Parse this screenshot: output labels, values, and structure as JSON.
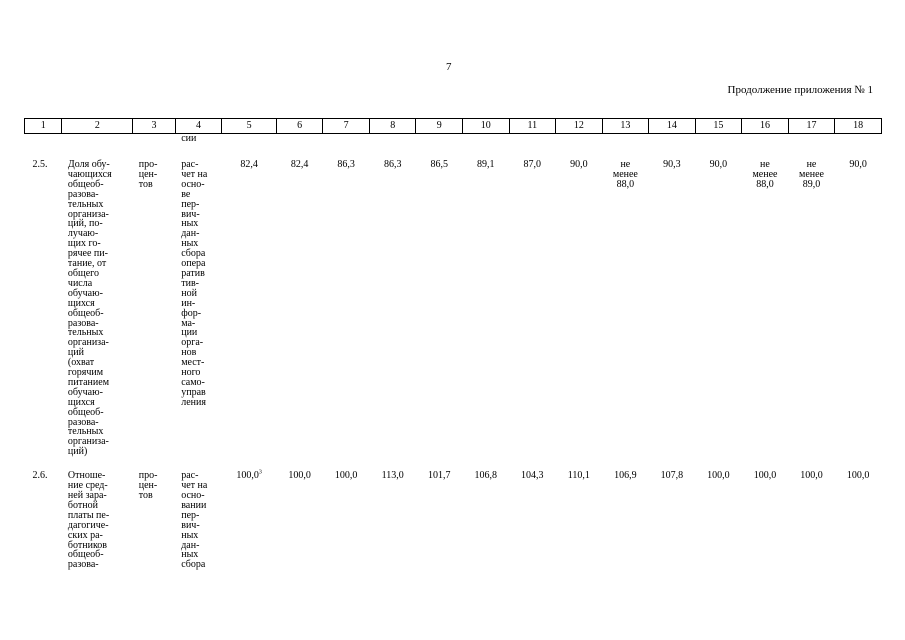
{
  "page_number": "7",
  "continuation": "Продолжение приложения № 1",
  "headers": [
    "1",
    "2",
    "3",
    "4",
    "5",
    "6",
    "7",
    "8",
    "9",
    "10",
    "11",
    "12",
    "13",
    "14",
    "15",
    "16",
    "17",
    "18"
  ],
  "carry_over": "сии",
  "rows": [
    {
      "id": "2.5.",
      "name": "Доля обу-\nчающихся\nобщеоб-\nразова-\nтельных\nорганиза-\nций, по-\nлучаю-\nщих го-\nрячее пи-\nтание, от\nобщего\nчисла\nобучаю-\nщихся\nобщеоб-\nразова-\nтельных\nорганиза-\nций\n(охват\nгорячим\nпитанием\nобучаю-\nщихся\nобщеоб-\nразова-\nтельных\nорганиза-\nций)",
      "unit": "про-\nцен-\nтов",
      "method": "рас-\nчет на\nосно-\nве\nпер-\nвич-\nных\nдан-\nных\nсбора\nопера\nратив\nтив-\nной\nин-\nфор-\nма-\nции\nорга-\nнов\nмест-\nного\nсамо-\nуправ\nления",
      "values": [
        "82,4",
        "82,4",
        "86,3",
        "86,3",
        "86,5",
        "89,1",
        "87,0",
        "90,0",
        "не\nменее\n88,0",
        "90,3",
        "90,0",
        "не\nменее\n88,0",
        "не\nменее\n89,0",
        "90,0"
      ]
    },
    {
      "id": "2.6.",
      "name": "Отноше-\nние сред-\nней зара-\nботной\nплаты пе-\nдагогиче-\nских ра-\nботников\nобщеоб-\nразова-",
      "unit": "про-\nцен-\nтов",
      "method": "рас-\nчет на\nосно-\nвании\nпер-\nвич-\nных\nдан-\nных\nсбора",
      "first_value": "100,0",
      "first_value_note": "3",
      "values": [
        "100,0",
        "100,0",
        "113,0",
        "101,7",
        "106,8",
        "104,3",
        "110,1",
        "106,9",
        "107,8",
        "100,0",
        "100,0",
        "100,0",
        "100,0"
      ]
    }
  ]
}
